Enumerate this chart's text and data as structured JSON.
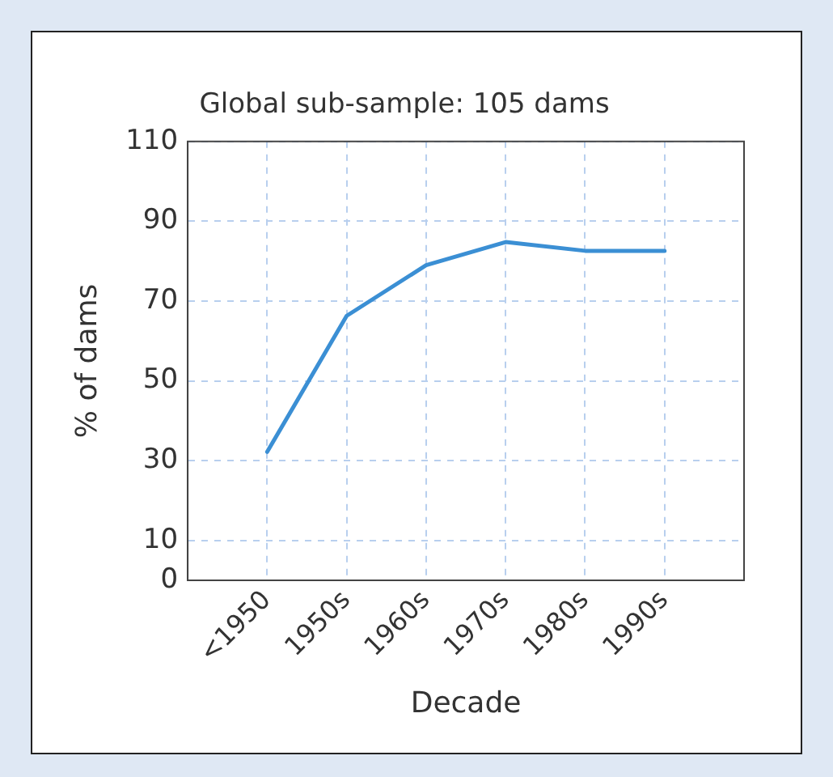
{
  "chart_data": {
    "type": "line",
    "title": "Global sub-sample: 105 dams",
    "xlabel": "Decade",
    "ylabel": "% of dams",
    "categories": [
      "<1950",
      "1950s",
      "1960s",
      "1970s",
      "1980s",
      "1990s"
    ],
    "series": [
      {
        "color": "#3b8fd4",
        "values": [
          32.2,
          66.3,
          79,
          84.8,
          82.6,
          82.6
        ]
      }
    ],
    "ylim": [
      0,
      110
    ],
    "yticks": [
      0,
      10,
      30,
      50,
      70,
      90,
      110
    ],
    "grid": true,
    "legend": false,
    "marker": "none",
    "line_style": "solid"
  }
}
